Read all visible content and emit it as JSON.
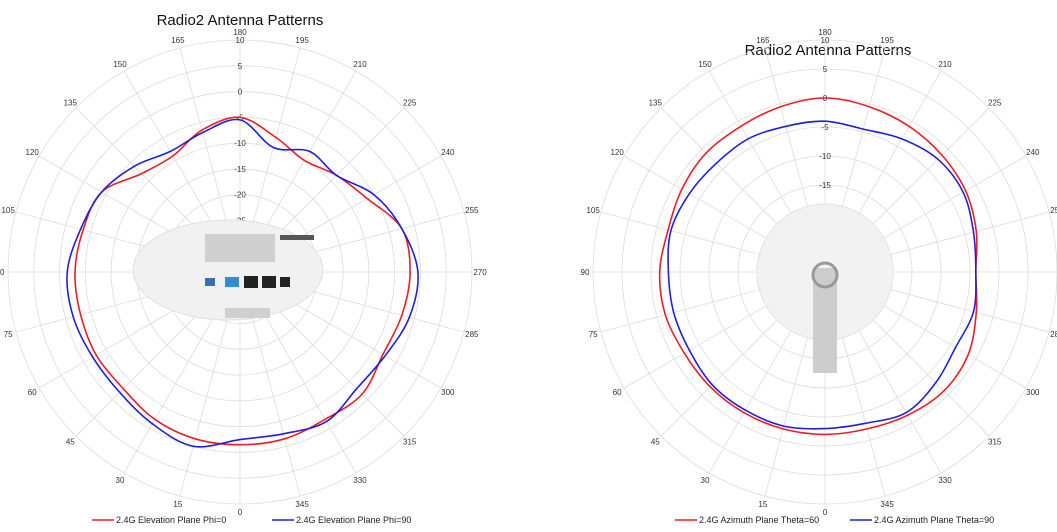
{
  "chart_data": [
    {
      "type": "polar-line",
      "title": "Radio2 Antenna Patterns",
      "angle_ticks": [
        0,
        15,
        30,
        45,
        60,
        75,
        90,
        105,
        120,
        135,
        150,
        165,
        180,
        195,
        210,
        225,
        240,
        255,
        270,
        285,
        300,
        315,
        330,
        345
      ],
      "radial_ticks": [
        10,
        5,
        0,
        -5,
        -10,
        -15,
        -20,
        -25
      ],
      "rlim": [
        -35,
        10
      ],
      "angles": [
        0,
        15,
        30,
        45,
        60,
        75,
        90,
        105,
        120,
        135,
        150,
        165,
        180,
        195,
        210,
        225,
        240,
        255,
        270,
        285,
        300,
        315,
        330,
        345
      ],
      "series": [
        {
          "name": "2.4G Elevation Plane Phi=0",
          "color": "#ee1c24",
          "values": [
            -1.5,
            -1.5,
            -2,
            -3,
            -2.8,
            -3,
            -3,
            -3.5,
            -4,
            -8,
            -9,
            -6.5,
            -5,
            -8,
            -10,
            -8.5,
            -6.5,
            -2.5,
            -2,
            -2.5,
            -3,
            -1.5,
            -2,
            -1.5
          ]
        },
        {
          "name": "2.4G Elevation Plane Phi=90",
          "color": "#1f1fe0",
          "values": [
            -2.5,
            0,
            -1,
            -2,
            -2,
            -1.5,
            -1.5,
            -3,
            -4,
            -6,
            -8,
            -7,
            -5.5,
            -10,
            -8,
            -8.5,
            -5,
            -2.5,
            -0.5,
            -1,
            -2.5,
            -3,
            -1.5,
            -2.5
          ]
        }
      ]
    },
    {
      "type": "polar-line",
      "title": "Radio2 Antenna Patterns",
      "angle_ticks": [
        0,
        15,
        30,
        45,
        60,
        75,
        90,
        105,
        120,
        135,
        150,
        165,
        180,
        195,
        210,
        225,
        240,
        255,
        270,
        285,
        300,
        315,
        330,
        345
      ],
      "radial_ticks": [
        10,
        5,
        0,
        -5,
        -10,
        -15,
        -20
      ],
      "rlim": [
        -30,
        10
      ],
      "angles": [
        0,
        15,
        30,
        45,
        60,
        75,
        90,
        105,
        120,
        135,
        150,
        165,
        180,
        195,
        210,
        225,
        240,
        255,
        270,
        285,
        300,
        315,
        330,
        345
      ],
      "series": [
        {
          "name": "2.4G Azimuth Plane Theta=60",
          "color": "#ee1c24",
          "values": [
            -2,
            -2,
            -2,
            -2,
            -2,
            -1.5,
            -1.5,
            -2,
            -1.5,
            -1,
            -1,
            -0.5,
            0,
            -0.5,
            -1,
            -1.5,
            -2,
            -3,
            -4,
            -3,
            -1.5,
            -1,
            -1.5,
            -2
          ]
        },
        {
          "name": "2.4G Azimuth Plane Theta=90",
          "color": "#1f1fe0",
          "values": [
            -3,
            -2.5,
            -2.5,
            -2.5,
            -3,
            -3,
            -3,
            -2.5,
            -3,
            -3.5,
            -3.5,
            -4,
            -4,
            -4.5,
            -3.5,
            -2.5,
            -2.5,
            -3.5,
            -4,
            -3.5,
            -4,
            -3,
            -2,
            -3
          ]
        }
      ]
    }
  ]
}
